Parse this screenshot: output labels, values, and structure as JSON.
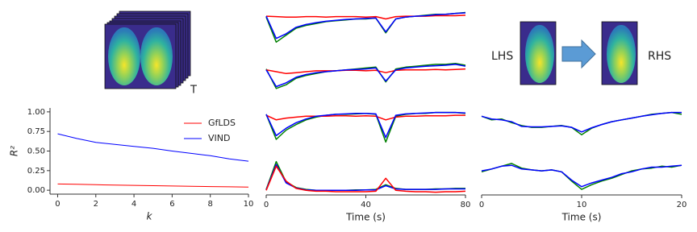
{
  "labels": {
    "stack_axis": "T",
    "left": "LHS",
    "right": "RHS"
  },
  "chart_data": [
    {
      "type": "line",
      "x": [
        0,
        1,
        2,
        3,
        4,
        5,
        6,
        7,
        8,
        9,
        10
      ],
      "xlabel": "k",
      "ylabel": "R²",
      "xlim": [
        -0.4,
        10
      ],
      "xticks": [
        0,
        2,
        4,
        6,
        8,
        10
      ],
      "ylim": [
        -0.05,
        1.05
      ],
      "yticks": [
        {
          "value": 0,
          "label": "0.00"
        },
        {
          "value": 0.25,
          "label": "0.25"
        },
        {
          "value": 0.5,
          "label": "0.50"
        },
        {
          "value": 0.75,
          "label": "0.75"
        },
        {
          "value": 1,
          "label": "1.00"
        }
      ],
      "legend": "upper right",
      "series": [
        {
          "name": "GfLDS",
          "color": "#ff0000",
          "values": [
            0.08,
            0.075,
            0.07,
            0.066,
            0.062,
            0.058,
            0.054,
            0.05,
            0.047,
            0.044,
            0.04
          ]
        },
        {
          "name": "VIND",
          "color": "#0000ff",
          "values": [
            0.72,
            0.66,
            0.61,
            0.585,
            0.56,
            0.535,
            0.5,
            0.47,
            0.44,
            0.4,
            0.37
          ]
        }
      ]
    },
    {
      "type": "line",
      "x": [
        0,
        4,
        8,
        12,
        16,
        20,
        24,
        28,
        32,
        36,
        40,
        44,
        48,
        52,
        56,
        60,
        64,
        68,
        72,
        76,
        80
      ],
      "xlabel": "Time (s)",
      "xlim": [
        0,
        80
      ],
      "xticks": [
        0,
        40,
        80
      ],
      "ylim": [
        0,
        4
      ],
      "series": [
        {
          "color": "#008000",
          "values": [
            3.84,
            3.3,
            3.45,
            3.6,
            3.66,
            3.7,
            3.74,
            3.76,
            3.78,
            3.8,
            3.8,
            3.82,
            3.5,
            3.8,
            3.84,
            3.86,
            3.88,
            3.9,
            3.9,
            3.92,
            3.94
          ]
        },
        {
          "color": "#ff0000",
          "values": [
            3.86,
            3.85,
            3.84,
            3.84,
            3.85,
            3.85,
            3.84,
            3.85,
            3.85,
            3.85,
            3.84,
            3.85,
            3.8,
            3.85,
            3.86,
            3.86,
            3.86,
            3.87,
            3.87,
            3.87,
            3.88
          ]
        },
        {
          "color": "#0000ff",
          "values": [
            3.86,
            3.38,
            3.48,
            3.62,
            3.68,
            3.72,
            3.75,
            3.77,
            3.79,
            3.8,
            3.81,
            3.82,
            3.52,
            3.8,
            3.84,
            3.86,
            3.87,
            3.89,
            3.9,
            3.92,
            3.93
          ]
        },
        {
          "color": "#008000",
          "values": [
            2.72,
            2.3,
            2.38,
            2.52,
            2.58,
            2.62,
            2.66,
            2.68,
            2.7,
            2.72,
            2.74,
            2.76,
            2.44,
            2.72,
            2.76,
            2.78,
            2.8,
            2.82,
            2.82,
            2.84,
            2.8
          ]
        },
        {
          "color": "#ff0000",
          "values": [
            2.7,
            2.66,
            2.62,
            2.64,
            2.66,
            2.68,
            2.68,
            2.68,
            2.69,
            2.69,
            2.68,
            2.69,
            2.64,
            2.69,
            2.7,
            2.7,
            2.7,
            2.71,
            2.7,
            2.71,
            2.72
          ]
        },
        {
          "color": "#0000ff",
          "values": [
            2.7,
            2.34,
            2.42,
            2.54,
            2.6,
            2.64,
            2.66,
            2.68,
            2.7,
            2.71,
            2.72,
            2.74,
            2.46,
            2.7,
            2.74,
            2.76,
            2.78,
            2.79,
            2.8,
            2.82,
            2.78
          ]
        },
        {
          "color": "#008000",
          "values": [
            1.74,
            1.2,
            1.4,
            1.52,
            1.62,
            1.68,
            1.72,
            1.74,
            1.74,
            1.75,
            1.76,
            1.74,
            1.14,
            1.7,
            1.74,
            1.76,
            1.76,
            1.78,
            1.78,
            1.78,
            1.76
          ]
        },
        {
          "color": "#ff0000",
          "values": [
            1.72,
            1.62,
            1.66,
            1.68,
            1.7,
            1.7,
            1.7,
            1.71,
            1.71,
            1.7,
            1.71,
            1.7,
            1.62,
            1.68,
            1.7,
            1.7,
            1.71,
            1.71,
            1.71,
            1.72,
            1.72
          ]
        },
        {
          "color": "#0000ff",
          "values": [
            1.74,
            1.28,
            1.44,
            1.56,
            1.64,
            1.7,
            1.72,
            1.74,
            1.75,
            1.76,
            1.76,
            1.75,
            1.24,
            1.72,
            1.75,
            1.76,
            1.77,
            1.78,
            1.78,
            1.78,
            1.77
          ]
        },
        {
          "color": "#008000",
          "values": [
            0.12,
            0.72,
            0.28,
            0.16,
            0.12,
            0.1,
            0.1,
            0.1,
            0.1,
            0.11,
            0.11,
            0.12,
            0.22,
            0.14,
            0.12,
            0.12,
            0.12,
            0.13,
            0.13,
            0.14,
            0.14
          ]
        },
        {
          "color": "#0000ff",
          "values": [
            0.11,
            0.66,
            0.26,
            0.15,
            0.11,
            0.1,
            0.1,
            0.1,
            0.1,
            0.1,
            0.11,
            0.11,
            0.2,
            0.13,
            0.12,
            0.12,
            0.12,
            0.12,
            0.13,
            0.13,
            0.13
          ]
        },
        {
          "color": "#ff0000",
          "values": [
            0.1,
            0.62,
            0.3,
            0.14,
            0.1,
            0.08,
            0.08,
            0.07,
            0.07,
            0.07,
            0.07,
            0.08,
            0.36,
            0.1,
            0.08,
            0.07,
            0.07,
            0.06,
            0.07,
            0.07,
            0.08
          ]
        }
      ]
    },
    {
      "type": "line",
      "x": [
        0,
        1,
        2,
        3,
        4,
        5,
        6,
        7,
        8,
        9,
        10,
        11,
        12,
        13,
        14,
        15,
        16,
        17,
        18,
        19,
        20
      ],
      "xlabel": "Time (s)",
      "xlim": [
        0,
        20
      ],
      "xticks": [
        0,
        10,
        20
      ],
      "ylim": [
        0,
        4
      ],
      "series": [
        {
          "color": "#008000",
          "values": [
            1.7,
            1.62,
            1.64,
            1.56,
            1.5,
            1.46,
            1.46,
            1.48,
            1.5,
            1.46,
            1.3,
            1.44,
            1.52,
            1.58,
            1.62,
            1.66,
            1.7,
            1.74,
            1.76,
            1.78,
            1.74
          ]
        },
        {
          "color": "#0000ff",
          "values": [
            1.7,
            1.64,
            1.62,
            1.58,
            1.48,
            1.47,
            1.47,
            1.48,
            1.49,
            1.46,
            1.36,
            1.45,
            1.52,
            1.58,
            1.62,
            1.66,
            1.7,
            1.73,
            1.76,
            1.78,
            1.78
          ]
        },
        {
          "color": "#008000",
          "values": [
            0.5,
            0.56,
            0.62,
            0.68,
            0.58,
            0.54,
            0.52,
            0.54,
            0.5,
            0.3,
            0.12,
            0.22,
            0.3,
            0.36,
            0.44,
            0.52,
            0.56,
            0.58,
            0.62,
            0.6,
            0.64
          ]
        },
        {
          "color": "#0000ff",
          "values": [
            0.52,
            0.56,
            0.62,
            0.64,
            0.56,
            0.54,
            0.52,
            0.54,
            0.5,
            0.32,
            0.18,
            0.26,
            0.32,
            0.38,
            0.46,
            0.5,
            0.56,
            0.6,
            0.6,
            0.62,
            0.64
          ]
        }
      ]
    }
  ]
}
